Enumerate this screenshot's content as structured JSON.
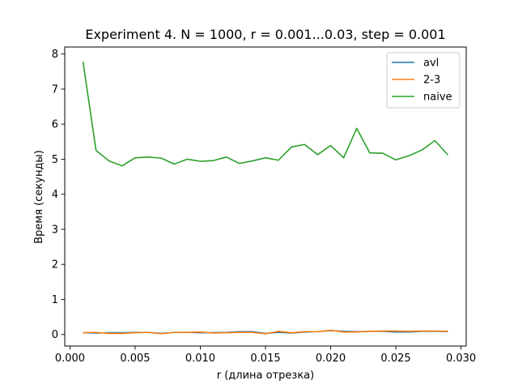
{
  "chart_data": {
    "type": "line",
    "title": "Experiment 4. N = 1000, r = 0.001...0.03, step = 0.001",
    "xlabel": "r (длина отрезка)",
    "ylabel": "Время (секунды)",
    "xlim": [
      -0.0004,
      0.0304
    ],
    "ylim": [
      -0.33,
      8.2
    ],
    "xticks": [
      0.0,
      0.005,
      0.01,
      0.015,
      0.02,
      0.025,
      0.03
    ],
    "xtick_labels": [
      "0.000",
      "0.005",
      "0.010",
      "0.015",
      "0.020",
      "0.025",
      "0.030"
    ],
    "yticks": [
      0,
      1,
      2,
      3,
      4,
      5,
      6,
      7,
      8
    ],
    "ytick_labels": [
      "0",
      "1",
      "2",
      "3",
      "4",
      "5",
      "6",
      "7",
      "8"
    ],
    "grid": false,
    "legend_position": "upper right",
    "x": [
      0.001,
      0.002,
      0.003,
      0.004,
      0.005,
      0.006,
      0.007,
      0.008,
      0.009,
      0.01,
      0.011,
      0.012,
      0.013,
      0.014,
      0.015,
      0.016,
      0.017,
      0.018,
      0.019,
      0.02,
      0.021,
      0.022,
      0.023,
      0.024,
      0.025,
      0.026,
      0.027,
      0.028,
      0.029
    ],
    "series": [
      {
        "name": "avl",
        "color": "#1f77b4",
        "values": [
          0.05,
          0.04,
          0.05,
          0.05,
          0.06,
          0.06,
          0.03,
          0.06,
          0.06,
          0.05,
          0.05,
          0.06,
          0.08,
          0.08,
          0.03,
          0.06,
          0.04,
          0.07,
          0.08,
          0.11,
          0.09,
          0.08,
          0.09,
          0.09,
          0.07,
          0.07,
          0.09,
          0.09,
          0.08
        ]
      },
      {
        "name": "2-3",
        "color": "#ff7f0e",
        "values": [
          0.05,
          0.06,
          0.03,
          0.03,
          0.05,
          0.06,
          0.02,
          0.06,
          0.06,
          0.07,
          0.04,
          0.05,
          0.06,
          0.06,
          0.02,
          0.09,
          0.05,
          0.08,
          0.08,
          0.12,
          0.07,
          0.07,
          0.09,
          0.1,
          0.1,
          0.09,
          0.1,
          0.1,
          0.09
        ]
      },
      {
        "name": "naive",
        "color": "#2ca02c",
        "values": [
          7.78,
          5.25,
          4.95,
          4.81,
          5.04,
          5.06,
          5.03,
          4.86,
          5.0,
          4.94,
          4.96,
          5.06,
          4.88,
          4.95,
          5.04,
          4.97,
          5.35,
          5.42,
          5.13,
          5.39,
          5.04,
          5.88,
          5.18,
          5.17,
          4.98,
          5.1,
          5.26,
          5.53,
          5.12
        ]
      }
    ]
  }
}
